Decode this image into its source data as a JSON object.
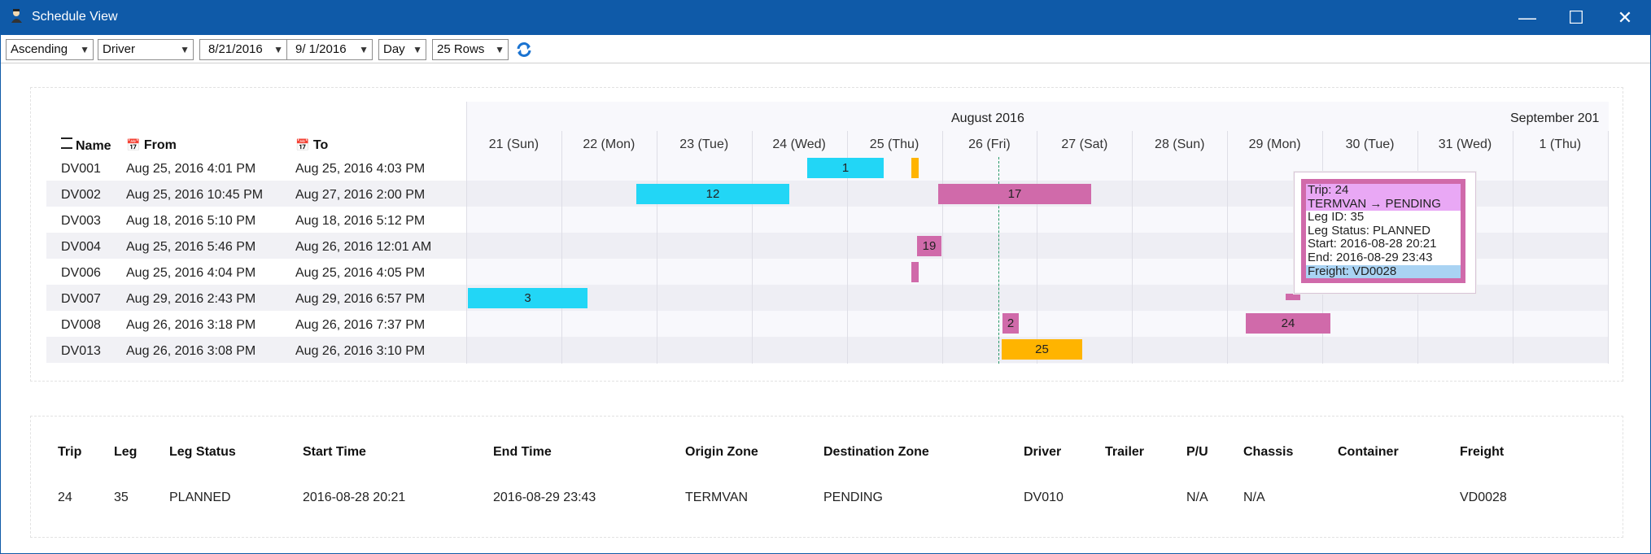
{
  "window": {
    "title": "Schedule View",
    "minimize": "—",
    "maximize": "☐",
    "close": "✕"
  },
  "toolbar": {
    "sort": "Ascending",
    "group_by": "Driver",
    "from_date": "8/21/2016",
    "to_date": "9/  1/2016",
    "scale": "Day",
    "rows": "25 Rows"
  },
  "schedule": {
    "columns": {
      "name": "Name",
      "from": "From",
      "to": "To"
    },
    "months": [
      "August 2016",
      "September 201"
    ],
    "days": [
      "21 (Sun)",
      "22 (Mon)",
      "23 (Tue)",
      "24 (Wed)",
      "25 (Thu)",
      "26 (Fri)",
      "27 (Sat)",
      "28 (Sun)",
      "29 (Mon)",
      "30 (Tue)",
      "31 (Wed)",
      "1 (Thu)"
    ],
    "rows": [
      {
        "name": "DV001",
        "from": "Aug 25, 2016 4:01 PM",
        "to": "Aug 25, 2016 4:03 PM"
      },
      {
        "name": "DV002",
        "from": "Aug 25, 2016 10:45 PM",
        "to": "Aug 27, 2016 2:00 PM"
      },
      {
        "name": "DV003",
        "from": "Aug 18, 2016 5:10 PM",
        "to": "Aug 18, 2016 5:12 PM"
      },
      {
        "name": "DV004",
        "from": "Aug 25, 2016 5:46 PM",
        "to": "Aug 26, 2016 12:01 AM"
      },
      {
        "name": "DV006",
        "from": "Aug 25, 2016 4:04 PM",
        "to": "Aug 25, 2016 4:05 PM"
      },
      {
        "name": "DV007",
        "from": "Aug 29, 2016 2:43 PM",
        "to": "Aug 29, 2016 6:57 PM"
      },
      {
        "name": "DV008",
        "from": "Aug 26, 2016 3:18 PM",
        "to": "Aug 26, 2016 7:37 PM"
      },
      {
        "name": "DV013",
        "from": "Aug 26, 2016 3:08 PM",
        "to": "Aug 26, 2016 3:10 PM"
      }
    ],
    "bars": [
      "1",
      "12",
      "17",
      "19",
      "3",
      "2",
      "24",
      "25"
    ]
  },
  "tooltip": {
    "trip": "Trip: 24",
    "route": "TERMVAN → PENDING",
    "leg_id": "Leg ID: 35",
    "leg_status": "Leg Status: PLANNED",
    "start": "Start: 2016-08-28 20:21",
    "end": "End: 2016-08-29 23:43",
    "freight": "Freight: VD0028"
  },
  "details": {
    "headers": [
      "Trip",
      "Leg",
      "Leg Status",
      "Start Time",
      "End Time",
      "Origin Zone",
      "Destination Zone",
      "Driver",
      "Trailer",
      "P/U",
      "Chassis",
      "Container",
      "Freight"
    ],
    "row": [
      "24",
      "35",
      "PLANNED",
      "2016-08-28 20:21",
      "2016-08-29 23:43",
      "TERMVAN",
      "PENDING",
      "DV010",
      "",
      "N/A",
      "N/A",
      "",
      "VD0028"
    ]
  },
  "colors": {
    "titlebar": "#0f5aa8",
    "cyan": "#22d6f6",
    "pink": "#d06aaa",
    "orange": "#ffb400"
  }
}
